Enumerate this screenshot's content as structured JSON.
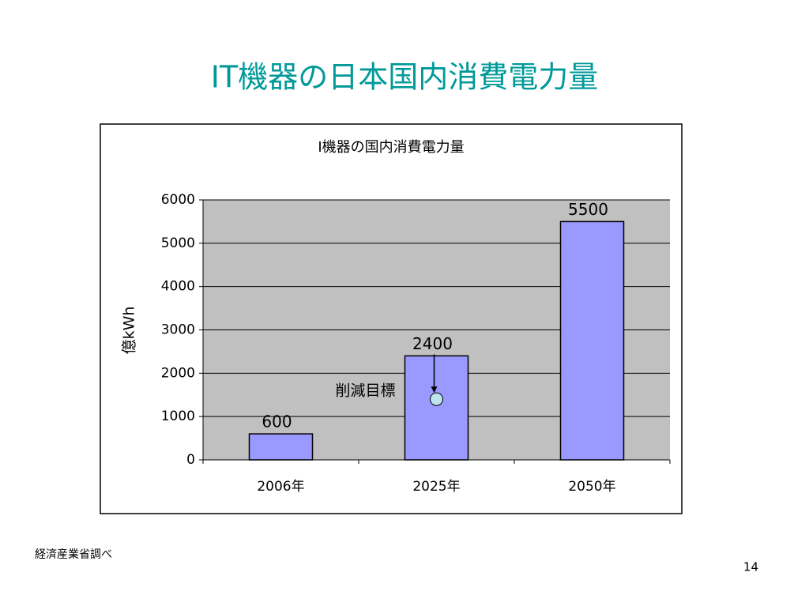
{
  "slide": {
    "title": "IT機器の日本国内消費電力量",
    "source": "経済産業省調べ",
    "page_number": 14
  },
  "chart_data": {
    "type": "bar",
    "title": "I機器の国内消費電力量",
    "y_label": "億kWh",
    "categories": [
      "2006年",
      "2025年",
      "2050年"
    ],
    "values": [
      600,
      2400,
      5500
    ],
    "color": "#9999ff",
    "ylim": [
      0,
      6000
    ],
    "yticks": [
      0,
      1000,
      2000,
      3000,
      4000,
      5000,
      6000
    ],
    "grid": true,
    "target": {
      "label": "削減目標",
      "value": 1400,
      "color": "#c0e4ec"
    }
  }
}
